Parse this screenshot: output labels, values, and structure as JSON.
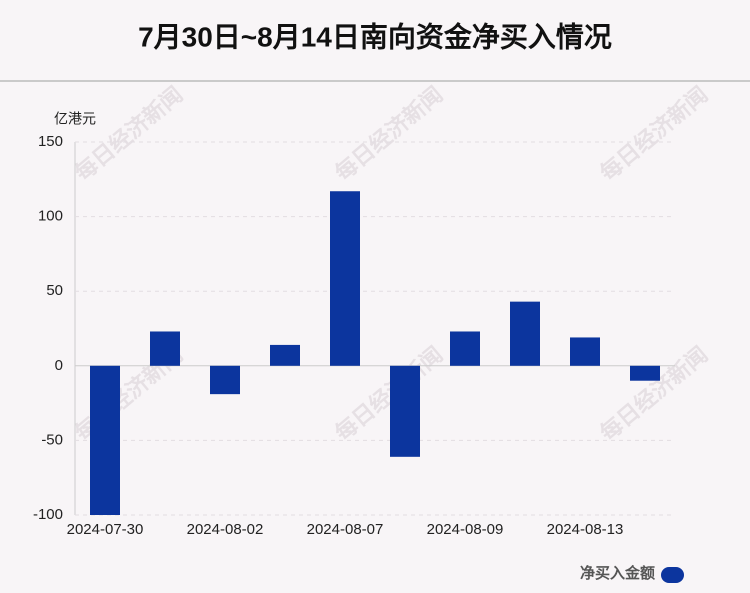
{
  "chart_data": {
    "type": "bar",
    "title": "7月30日~8月14日南向资金净买入情况",
    "y_axis_label": "亿港元",
    "categories": [
      "2024-07-30",
      null,
      "2024-08-02",
      null,
      "2024-08-07",
      null,
      "2024-08-09",
      null,
      "2024-08-13",
      null
    ],
    "series": [
      {
        "name": "净买入金额",
        "color": "#0c359e",
        "values": [
          -100,
          23,
          -19,
          14,
          117,
          -61,
          23,
          43,
          19,
          -10
        ]
      }
    ],
    "ylim": [
      -100,
      150
    ],
    "yticks": [
      -100,
      -50,
      0,
      50,
      100,
      150
    ],
    "grid": true,
    "legend": "bottom-right",
    "watermark": "每日经济新闻"
  }
}
